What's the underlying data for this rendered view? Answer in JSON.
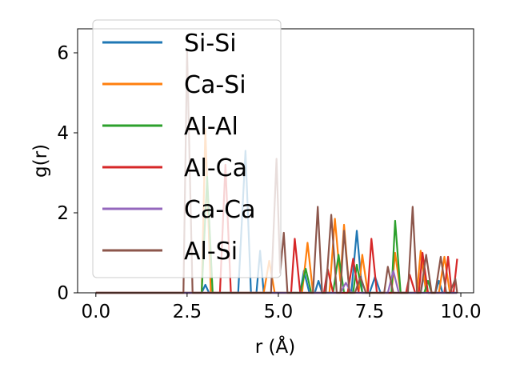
{
  "chart_data": {
    "type": "line",
    "xlabel": "r (Å)",
    "ylabel": "g(r)",
    "xlim": [
      -0.5,
      10.35
    ],
    "ylim": [
      0,
      6.6
    ],
    "xticks": [
      0.0,
      2.5,
      5.0,
      7.5,
      10.0
    ],
    "xtick_labels": [
      "0.0",
      "2.5",
      "5.0",
      "7.5",
      "10.0"
    ],
    "yticks": [
      0,
      2,
      4,
      6
    ],
    "ytick_labels": [
      "0",
      "2",
      "4",
      "6"
    ],
    "legend_position": "upper-left",
    "grid": false,
    "series": [
      {
        "name": "Si-Si",
        "color": "#1f77b4",
        "points": [
          [
            0,
            0
          ],
          [
            2.9,
            0
          ],
          [
            3.0,
            0.2
          ],
          [
            3.1,
            0
          ],
          [
            3.9,
            0
          ],
          [
            4.1,
            3.55
          ],
          [
            4.25,
            0
          ],
          [
            4.4,
            0
          ],
          [
            4.5,
            1.05
          ],
          [
            4.6,
            0
          ],
          [
            5.6,
            0
          ],
          [
            5.7,
            0.55
          ],
          [
            5.85,
            0
          ],
          [
            6.0,
            0
          ],
          [
            6.1,
            0.3
          ],
          [
            6.2,
            0
          ],
          [
            7.0,
            0
          ],
          [
            7.15,
            1.55
          ],
          [
            7.3,
            0
          ],
          [
            7.5,
            0
          ],
          [
            7.65,
            0.4
          ],
          [
            7.8,
            0
          ],
          [
            8.9,
            0
          ],
          [
            9.0,
            0.5
          ],
          [
            9.1,
            0
          ],
          [
            9.3,
            0
          ],
          [
            9.4,
            0.3
          ],
          [
            9.5,
            0
          ],
          [
            9.9,
            0
          ]
        ]
      },
      {
        "name": "Ca-Si",
        "color": "#ff7f0e",
        "points": [
          [
            0,
            0
          ],
          [
            2.9,
            0
          ],
          [
            3.0,
            4.1
          ],
          [
            3.15,
            0
          ],
          [
            4.6,
            0
          ],
          [
            4.75,
            0.8
          ],
          [
            4.9,
            0
          ],
          [
            5.65,
            0
          ],
          [
            5.8,
            1.25
          ],
          [
            5.95,
            0
          ],
          [
            6.4,
            0
          ],
          [
            6.55,
            1.85
          ],
          [
            6.7,
            0.3
          ],
          [
            6.8,
            1.7
          ],
          [
            6.95,
            0
          ],
          [
            7.2,
            0
          ],
          [
            7.3,
            0.95
          ],
          [
            7.45,
            0
          ],
          [
            8.1,
            0
          ],
          [
            8.2,
            1.0
          ],
          [
            8.35,
            0
          ],
          [
            8.8,
            0
          ],
          [
            8.9,
            1.05
          ],
          [
            9.05,
            0
          ],
          [
            9.4,
            0
          ],
          [
            9.55,
            0.9
          ],
          [
            9.7,
            0
          ],
          [
            9.9,
            0
          ]
        ]
      },
      {
        "name": "Al-Al",
        "color": "#2ca02c",
        "points": [
          [
            0,
            0
          ],
          [
            2.9,
            0
          ],
          [
            3.05,
            2.9
          ],
          [
            3.2,
            0
          ],
          [
            5.6,
            0
          ],
          [
            5.75,
            0.6
          ],
          [
            5.9,
            0
          ],
          [
            6.5,
            0
          ],
          [
            6.65,
            0.95
          ],
          [
            6.8,
            0
          ],
          [
            7.05,
            0
          ],
          [
            7.15,
            0.7
          ],
          [
            7.3,
            0
          ],
          [
            8.1,
            0
          ],
          [
            8.2,
            1.8
          ],
          [
            8.35,
            0
          ],
          [
            9.0,
            0
          ],
          [
            9.1,
            0.3
          ],
          [
            9.2,
            0
          ],
          [
            9.9,
            0
          ]
        ]
      },
      {
        "name": "Al-Ca",
        "color": "#d62728",
        "points": [
          [
            0,
            0
          ],
          [
            3.4,
            0
          ],
          [
            3.55,
            3.2
          ],
          [
            3.7,
            0
          ],
          [
            5.35,
            0
          ],
          [
            5.45,
            1.35
          ],
          [
            5.6,
            0
          ],
          [
            6.25,
            0
          ],
          [
            6.35,
            0.6
          ],
          [
            6.5,
            0
          ],
          [
            6.9,
            0
          ],
          [
            7.05,
            0.85
          ],
          [
            7.2,
            0
          ],
          [
            7.45,
            0
          ],
          [
            7.55,
            1.35
          ],
          [
            7.7,
            0
          ],
          [
            8.5,
            0
          ],
          [
            8.6,
            0.45
          ],
          [
            8.75,
            0
          ],
          [
            8.85,
            0
          ],
          [
            8.95,
            1.0
          ],
          [
            9.1,
            0
          ],
          [
            9.55,
            0
          ],
          [
            9.65,
            0.9
          ],
          [
            9.75,
            0
          ],
          [
            9.8,
            0
          ],
          [
            9.9,
            0.85
          ]
        ]
      },
      {
        "name": "Ca-Ca",
        "color": "#9467bd",
        "points": [
          [
            0,
            0
          ],
          [
            6.7,
            0
          ],
          [
            6.85,
            0.25
          ],
          [
            7.0,
            0
          ],
          [
            8.0,
            0
          ],
          [
            8.15,
            0.55
          ],
          [
            8.3,
            0
          ],
          [
            9.9,
            0
          ]
        ]
      },
      {
        "name": "Al-Si",
        "color": "#8c564b",
        "points": [
          [
            0,
            0
          ],
          [
            2.4,
            0
          ],
          [
            2.5,
            6.05
          ],
          [
            2.65,
            0
          ],
          [
            4.8,
            0
          ],
          [
            4.95,
            3.35
          ],
          [
            5.05,
            0.5
          ],
          [
            5.15,
            1.5
          ],
          [
            5.25,
            0
          ],
          [
            5.95,
            0
          ],
          [
            6.08,
            2.15
          ],
          [
            6.2,
            0
          ],
          [
            6.3,
            0
          ],
          [
            6.45,
            1.95
          ],
          [
            6.6,
            0
          ],
          [
            6.7,
            0
          ],
          [
            6.8,
            1.55
          ],
          [
            6.95,
            0
          ],
          [
            7.1,
            0
          ],
          [
            7.25,
            0.4
          ],
          [
            7.4,
            0
          ],
          [
            7.9,
            0
          ],
          [
            8.0,
            0.65
          ],
          [
            8.15,
            0
          ],
          [
            8.55,
            0
          ],
          [
            8.68,
            2.15
          ],
          [
            8.8,
            0
          ],
          [
            8.9,
            0
          ],
          [
            9.05,
            0.95
          ],
          [
            9.2,
            0
          ],
          [
            9.3,
            0
          ],
          [
            9.45,
            0.9
          ],
          [
            9.6,
            0
          ],
          [
            9.7,
            0
          ],
          [
            9.85,
            0.35
          ],
          [
            9.9,
            0
          ]
        ]
      }
    ]
  }
}
